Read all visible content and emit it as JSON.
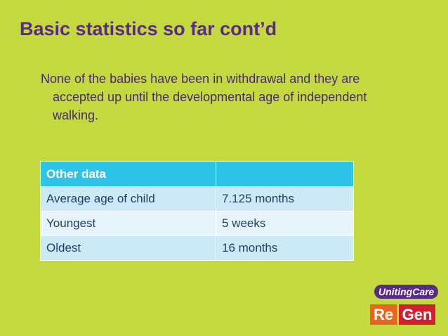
{
  "header": {
    "title": "Basic statistics so far cont’d"
  },
  "body": {
    "paragraph": "None of the babies have been in withdrawal and they are accepted up until the developmental age of independent walking."
  },
  "table": {
    "header": [
      "Other data"
    ],
    "rows": [
      [
        "Average age of child",
        "7.125 months"
      ],
      [
        "Youngest",
        "5 weeks"
      ],
      [
        "Oldest",
        "16 months"
      ]
    ]
  },
  "logo": {
    "brand": "UnitingCare",
    "left": "Re",
    "right": "Gen"
  }
}
